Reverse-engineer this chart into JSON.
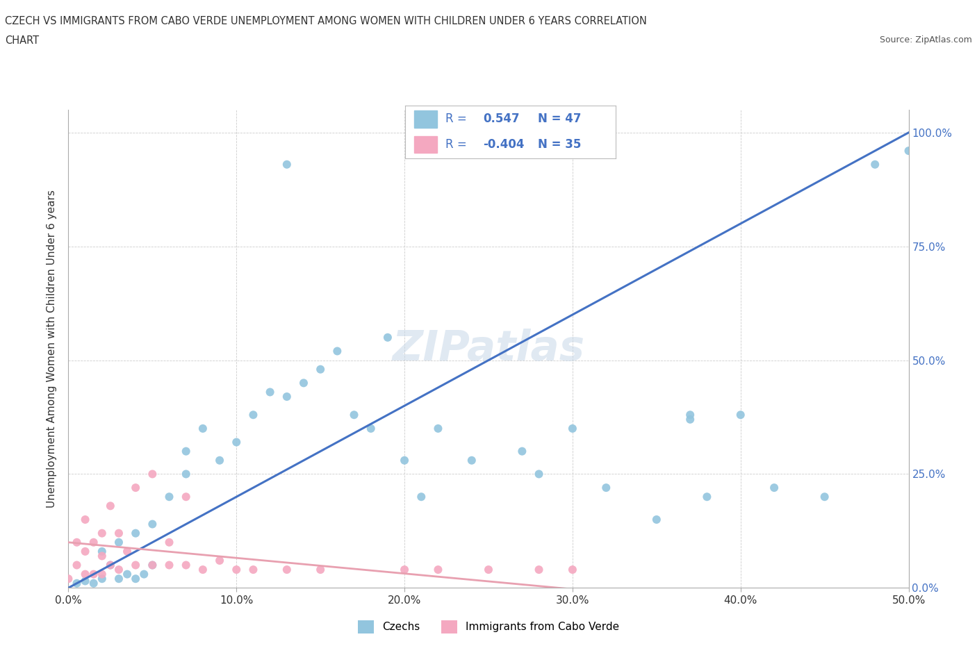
{
  "title_line1": "CZECH VS IMMIGRANTS FROM CABO VERDE UNEMPLOYMENT AMONG WOMEN WITH CHILDREN UNDER 6 YEARS CORRELATION",
  "title_line2": "CHART",
  "source_text": "Source: ZipAtlas.com",
  "ylabel": "Unemployment Among Women with Children Under 6 years",
  "xlim": [
    0.0,
    0.5
  ],
  "ylim": [
    0.0,
    1.05
  ],
  "xticks": [
    0.0,
    0.1,
    0.2,
    0.3,
    0.4,
    0.5
  ],
  "xticklabels": [
    "0.0%",
    "10.0%",
    "20.0%",
    "30.0%",
    "40.0%",
    "50.0%"
  ],
  "yticks": [
    0.0,
    0.25,
    0.5,
    0.75,
    1.0
  ],
  "yticklabels": [
    "0.0%",
    "25.0%",
    "50.0%",
    "75.0%",
    "100.0%"
  ],
  "czech_color": "#92c5de",
  "cabo_verde_color": "#f4a8c0",
  "czech_R": 0.547,
  "czech_N": 47,
  "cabo_verde_R": -0.404,
  "cabo_verde_N": 35,
  "watermark": "ZIPatlas",
  "legend_labels": [
    "Czechs",
    "Immigrants from Cabo Verde"
  ],
  "czech_scatter_x": [
    0.005,
    0.01,
    0.015,
    0.02,
    0.02,
    0.025,
    0.03,
    0.03,
    0.035,
    0.04,
    0.04,
    0.045,
    0.05,
    0.05,
    0.06,
    0.07,
    0.07,
    0.08,
    0.09,
    0.1,
    0.11,
    0.12,
    0.13,
    0.14,
    0.15,
    0.16,
    0.17,
    0.18,
    0.19,
    0.2,
    0.21,
    0.22,
    0.24,
    0.27,
    0.28,
    0.3,
    0.32,
    0.35,
    0.37,
    0.38,
    0.4,
    0.42,
    0.45,
    0.48,
    0.5,
    0.13,
    0.37
  ],
  "czech_scatter_y": [
    0.01,
    0.015,
    0.01,
    0.02,
    0.08,
    0.05,
    0.02,
    0.1,
    0.03,
    0.02,
    0.12,
    0.03,
    0.05,
    0.14,
    0.2,
    0.25,
    0.3,
    0.35,
    0.28,
    0.32,
    0.38,
    0.43,
    0.42,
    0.45,
    0.48,
    0.52,
    0.38,
    0.35,
    0.55,
    0.28,
    0.2,
    0.35,
    0.28,
    0.3,
    0.25,
    0.35,
    0.22,
    0.15,
    0.38,
    0.2,
    0.38,
    0.22,
    0.2,
    0.93,
    0.96,
    0.93,
    0.37
  ],
  "cabo_verde_scatter_x": [
    0.0,
    0.005,
    0.005,
    0.01,
    0.01,
    0.01,
    0.015,
    0.015,
    0.02,
    0.02,
    0.02,
    0.025,
    0.025,
    0.03,
    0.03,
    0.035,
    0.04,
    0.04,
    0.05,
    0.05,
    0.06,
    0.06,
    0.07,
    0.07,
    0.08,
    0.09,
    0.1,
    0.11,
    0.13,
    0.15,
    0.2,
    0.22,
    0.25,
    0.28,
    0.3
  ],
  "cabo_verde_scatter_y": [
    0.02,
    0.05,
    0.1,
    0.03,
    0.08,
    0.15,
    0.03,
    0.1,
    0.03,
    0.07,
    0.12,
    0.05,
    0.18,
    0.04,
    0.12,
    0.08,
    0.05,
    0.22,
    0.05,
    0.25,
    0.05,
    0.1,
    0.05,
    0.2,
    0.04,
    0.06,
    0.04,
    0.04,
    0.04,
    0.04,
    0.04,
    0.04,
    0.04,
    0.04,
    0.04
  ],
  "grid_color": "#cccccc",
  "background_color": "#ffffff",
  "line_color_czech": "#4472c4",
  "line_color_cabo": "#e8a0b0",
  "czech_line_x0": 0.0,
  "czech_line_y0": 0.0,
  "czech_line_x1": 0.5,
  "czech_line_y1": 1.0,
  "cabo_line_x0": 0.0,
  "cabo_line_y0": 0.1,
  "cabo_line_x1": 0.35,
  "cabo_line_y1": -0.02
}
